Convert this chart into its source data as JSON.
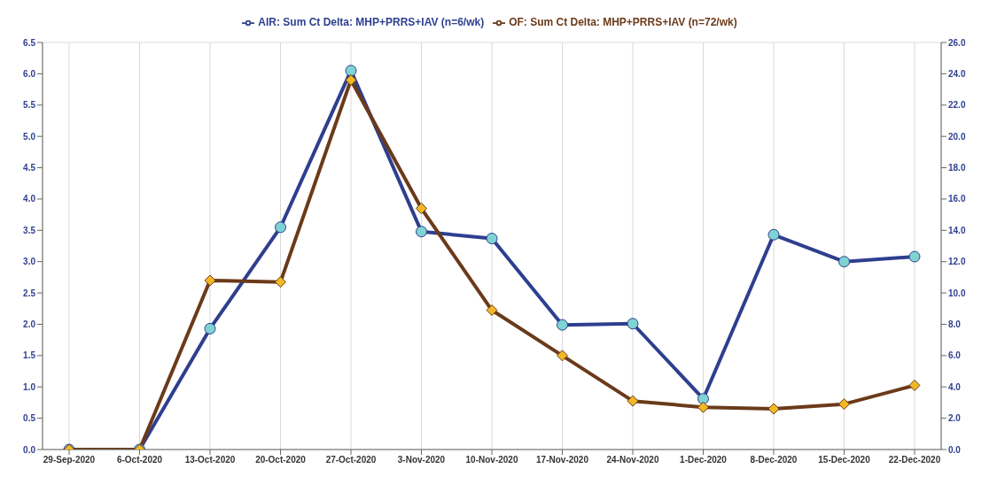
{
  "chart_data": {
    "type": "line",
    "categories": [
      "29-Sep-2020",
      "6-Oct-2020",
      "13-Oct-2020",
      "20-Oct-2020",
      "27-Oct-2020",
      "3-Nov-2020",
      "10-Nov-2020",
      "17-Nov-2020",
      "24-Nov-2020",
      "1-Dec-2020",
      "8-Dec-2020",
      "15-Dec-2020",
      "22-Dec-2020"
    ],
    "series": [
      {
        "name": "AIR: Sum Ct Delta: MHP+PRRS+IAV (n=6/wk)",
        "color": "#2e3f8f",
        "marker": "circle",
        "values": [
          0,
          0,
          1.93,
          3.55,
          6.05,
          3.48,
          3.37,
          1.99,
          2.01,
          0.81,
          3.43,
          3.0,
          3.08
        ]
      },
      {
        "name": "OF: Sum Ct Delta: MHP+PRRS+IAV (n=72/wk)",
        "color": "#6b3a1a",
        "marker": "diamond",
        "axis": "y2",
        "values": [
          0,
          0,
          10.8,
          10.7,
          23.6,
          15.4,
          8.9,
          6.0,
          3.1,
          2.7,
          2.6,
          2.9,
          4.1
        ]
      }
    ],
    "ylim": [
      0,
      6.5
    ],
    "yticks": [
      {
        "value": 0,
        "label": "0.0"
      },
      {
        "value": 0.5,
        "label": "0.5"
      },
      {
        "value": 1,
        "label": "1.0"
      },
      {
        "value": 1.5,
        "label": "1.5"
      },
      {
        "value": 2,
        "label": "2.0"
      },
      {
        "value": 2.5,
        "label": "2.5"
      },
      {
        "value": 3,
        "label": "3.0"
      },
      {
        "value": 3.5,
        "label": "3.5"
      },
      {
        "value": 4,
        "label": "4.0"
      },
      {
        "value": 4.5,
        "label": "4.5"
      },
      {
        "value": 5,
        "label": "5.0"
      },
      {
        "value": 5.5,
        "label": "5.5"
      },
      {
        "value": 6,
        "label": "6.0"
      },
      {
        "value": 6.5,
        "label": "6.5"
      }
    ],
    "y2lim": [
      0,
      26
    ],
    "y2ticks": [
      {
        "value": 0,
        "label": "0.0"
      },
      {
        "value": 2,
        "label": "2.0"
      },
      {
        "value": 4,
        "label": "4.0"
      },
      {
        "value": 6,
        "label": "6.0"
      },
      {
        "value": 8,
        "label": "8.0"
      },
      {
        "value": 10,
        "label": "10.0"
      },
      {
        "value": 12,
        "label": "12.0"
      },
      {
        "value": 14,
        "label": "14.0"
      },
      {
        "value": 16,
        "label": "16.0"
      },
      {
        "value": 18,
        "label": "18.0"
      },
      {
        "value": 20,
        "label": "20.0"
      },
      {
        "value": 22,
        "label": "22.0"
      },
      {
        "value": 24,
        "label": "24.0"
      },
      {
        "value": 26,
        "label": "26.0"
      }
    ],
    "grid": true,
    "legend": "top"
  }
}
